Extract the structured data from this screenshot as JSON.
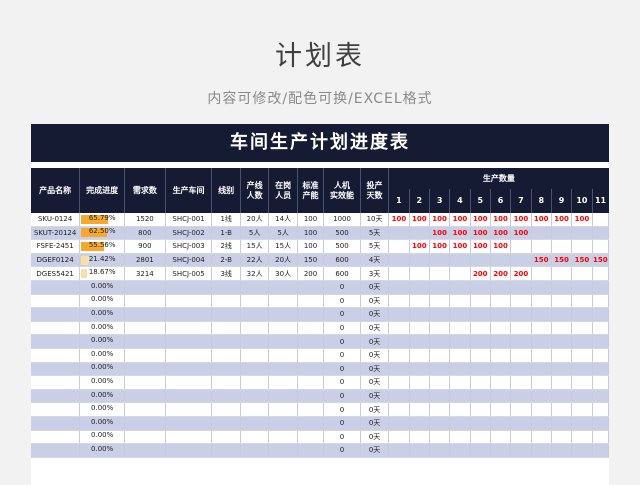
{
  "page": {
    "title": "计划表",
    "subtitle": "内容可修改/配色可换/EXCEL格式"
  },
  "sheet": {
    "banner": "车间生产计划进度表",
    "headers": {
      "product_name": "产品名称",
      "completion": "完成进度",
      "demand": "需求数",
      "workshop": "生产车间",
      "line": "线别",
      "line_staff": [
        "产线",
        "人数"
      ],
      "on_duty": [
        "在岗",
        "人员"
      ],
      "std_capacity": [
        "标准",
        "产能"
      ],
      "actual_eff": [
        "人机",
        "实效能"
      ],
      "days": [
        "投产",
        "天数"
      ],
      "qty_group": "生产数量",
      "day_numbers": [
        "1",
        "2",
        "3",
        "4",
        "5",
        "6",
        "7",
        "8",
        "9",
        "10",
        "11"
      ]
    },
    "rows": [
      {
        "product": "SKU-0124",
        "progress": "65.79%",
        "progress_value": 0.6579,
        "demand": "1520",
        "workshop": "SHCJ-001",
        "line": "1线",
        "line_staff": "20人",
        "on_duty": "14人",
        "std": "100",
        "eff": "1000",
        "days": "10天",
        "qty": [
          "100",
          "100",
          "100",
          "100",
          "100",
          "100",
          "100",
          "100",
          "100",
          "100",
          ""
        ]
      },
      {
        "product": "SKUT-20124",
        "progress": "62.50%",
        "progress_value": 0.625,
        "demand": "800",
        "workshop": "SHCJ-002",
        "line": "1-B",
        "line_staff": "5人",
        "on_duty": "5人",
        "std": "100",
        "eff": "500",
        "days": "5天",
        "qty": [
          "",
          "",
          "100",
          "100",
          "100",
          "100",
          "100",
          "",
          "",
          "",
          ""
        ]
      },
      {
        "product": "FSFE-2451",
        "progress": "55.56%",
        "progress_value": 0.5556,
        "demand": "900",
        "workshop": "SHCJ-003",
        "line": "2线",
        "line_staff": "15人",
        "on_duty": "15人",
        "std": "100",
        "eff": "500",
        "days": "5天",
        "qty": [
          "",
          "100",
          "100",
          "100",
          "100",
          "100",
          "",
          "",
          "",
          "",
          ""
        ]
      },
      {
        "product": "DGEF0124",
        "progress": "21.42%",
        "progress_value": 0.2142,
        "demand": "2801",
        "workshop": "SHCJ-004",
        "line": "2-B",
        "line_staff": "22人",
        "on_duty": "20人",
        "std": "150",
        "eff": "600",
        "days": "4天",
        "qty": [
          "",
          "",
          "",
          "",
          "",
          "",
          "",
          "150",
          "150",
          "150",
          "150"
        ]
      },
      {
        "product": "DGES5421",
        "progress": "18.67%",
        "progress_value": 0.1867,
        "demand": "3214",
        "workshop": "SHCJ-005",
        "line": "3线",
        "line_staff": "32人",
        "on_duty": "30人",
        "std": "200",
        "eff": "600",
        "days": "3天",
        "qty": [
          "",
          "",
          "",
          "",
          "200",
          "200",
          "200",
          "",
          "",
          "",
          ""
        ]
      }
    ],
    "empty_row": {
      "progress": "0.00%",
      "eff": "0",
      "days": "0天"
    },
    "empty_row_count": 13
  },
  "colors": {
    "header_bg": "#141b33",
    "band": "#c9cfe6",
    "quantity_text": "#ff0000",
    "progress_fill": "#f6a92a"
  }
}
